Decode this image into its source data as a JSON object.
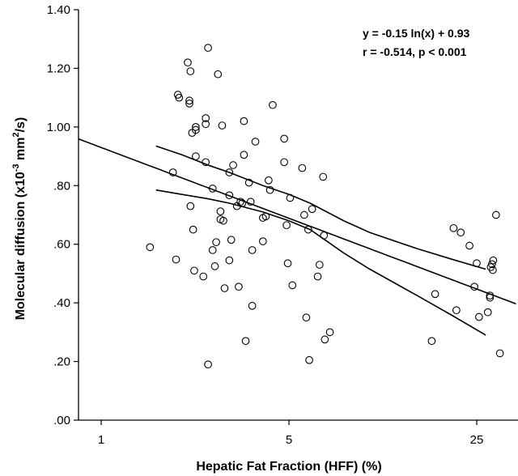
{
  "chart_data": {
    "type": "scatter",
    "xlabel": "Hepatic Fat Fraction (HFF) (%)",
    "ylabel_main": "Molecular diffusion (x10",
    "ylabel_exp": "-3",
    "ylabel_mid": " mm",
    "ylabel_sup2": "2",
    "ylabel_end": "/s)",
    "x_scale": "log",
    "x_ticks": [
      1,
      5,
      25
    ],
    "x_tick_labels": [
      "1",
      "5",
      "25"
    ],
    "y_ticks": [
      0,
      0.2,
      0.4,
      0.6,
      0.8,
      1.0,
      1.2,
      1.4
    ],
    "y_tick_labels": [
      ".00",
      ".20",
      ".40",
      ".60",
      ".80",
      "1.00",
      "1.20",
      "1.40"
    ],
    "ylim": [
      0,
      1.4
    ],
    "xlim": [
      0.6,
      35
    ],
    "grid": false,
    "annotations": [
      "y = -0.15 ln(x) + 0.93",
      "r = -0.514, p < 0.001"
    ],
    "fit": {
      "slope": -0.15,
      "intercept": 0.93,
      "x_range": [
        0.6,
        35
      ]
    },
    "confidence_band": {
      "x_range": [
        1.6,
        27
      ],
      "upper": [
        [
          1.6,
          0.935
        ],
        [
          2.0,
          0.905
        ],
        [
          2.5,
          0.87
        ],
        [
          3.0,
          0.845
        ],
        [
          4.0,
          0.8
        ],
        [
          5.0,
          0.77
        ],
        [
          6.0,
          0.74
        ],
        [
          8.0,
          0.68
        ],
        [
          10.0,
          0.64
        ],
        [
          15.0,
          0.585
        ],
        [
          20.0,
          0.55
        ],
        [
          27.0,
          0.515
        ]
      ],
      "lower": [
        [
          1.6,
          0.785
        ],
        [
          2.0,
          0.77
        ],
        [
          2.5,
          0.755
        ],
        [
          3.0,
          0.74
        ],
        [
          4.0,
          0.71
        ],
        [
          5.0,
          0.68
        ],
        [
          6.0,
          0.65
        ],
        [
          8.0,
          0.57
        ],
        [
          10.0,
          0.515
        ],
        [
          15.0,
          0.425
        ],
        [
          20.0,
          0.36
        ],
        [
          27.0,
          0.29
        ]
      ]
    },
    "points": [
      [
        1.52,
        0.59
      ],
      [
        1.85,
        0.845
      ],
      [
        1.9,
        0.548
      ],
      [
        1.93,
        1.11
      ],
      [
        1.95,
        1.1
      ],
      [
        2.1,
        1.22
      ],
      [
        2.13,
        1.09
      ],
      [
        2.13,
        1.08
      ],
      [
        2.15,
        1.19
      ],
      [
        2.15,
        0.73
      ],
      [
        2.18,
        0.98
      ],
      [
        2.2,
        0.65
      ],
      [
        2.22,
        0.51
      ],
      [
        2.25,
        1.0
      ],
      [
        2.25,
        0.99
      ],
      [
        2.25,
        0.9
      ],
      [
        2.4,
        0.49
      ],
      [
        2.45,
        1.03
      ],
      [
        2.45,
        1.01
      ],
      [
        2.45,
        0.88
      ],
      [
        2.5,
        1.27
      ],
      [
        2.5,
        0.19
      ],
      [
        2.6,
        0.79
      ],
      [
        2.6,
        0.58
      ],
      [
        2.65,
        0.525
      ],
      [
        2.68,
        0.607
      ],
      [
        2.72,
        1.18
      ],
      [
        2.78,
        0.712
      ],
      [
        2.78,
        0.685
      ],
      [
        2.82,
        1.005
      ],
      [
        2.85,
        0.68
      ],
      [
        2.88,
        0.45
      ],
      [
        3.0,
        0.845
      ],
      [
        3.0,
        0.767
      ],
      [
        3.0,
        0.545
      ],
      [
        3.05,
        0.615
      ],
      [
        3.1,
        0.87
      ],
      [
        3.2,
        0.73
      ],
      [
        3.25,
        0.455
      ],
      [
        3.3,
        0.745
      ],
      [
        3.35,
        0.74
      ],
      [
        3.4,
        1.02
      ],
      [
        3.4,
        0.905
      ],
      [
        3.45,
        0.27
      ],
      [
        3.55,
        0.81
      ],
      [
        3.6,
        0.745
      ],
      [
        3.65,
        0.58
      ],
      [
        3.65,
        0.39
      ],
      [
        3.75,
        0.95
      ],
      [
        4.0,
        0.61
      ],
      [
        4.0,
        0.69
      ],
      [
        4.1,
        0.695
      ],
      [
        4.2,
        0.818
      ],
      [
        4.25,
        0.785
      ],
      [
        4.35,
        1.075
      ],
      [
        4.8,
        0.96
      ],
      [
        4.8,
        0.88
      ],
      [
        4.9,
        0.665
      ],
      [
        4.95,
        0.535
      ],
      [
        5.05,
        0.758
      ],
      [
        5.15,
        0.46
      ],
      [
        5.6,
        0.86
      ],
      [
        5.7,
        0.7
      ],
      [
        5.8,
        0.35
      ],
      [
        5.9,
        0.65
      ],
      [
        5.95,
        0.205
      ],
      [
        6.1,
        0.72
      ],
      [
        6.4,
        0.49
      ],
      [
        6.5,
        0.53
      ],
      [
        6.7,
        0.83
      ],
      [
        6.75,
        0.63
      ],
      [
        6.8,
        0.275
      ],
      [
        7.1,
        0.3
      ],
      [
        17.0,
        0.27
      ],
      [
        17.5,
        0.43
      ],
      [
        20.5,
        0.655
      ],
      [
        21.0,
        0.375
      ],
      [
        21.8,
        0.64
      ],
      [
        23.5,
        0.595
      ],
      [
        24.5,
        0.455
      ],
      [
        25.0,
        0.535
      ],
      [
        25.5,
        0.352
      ],
      [
        27.5,
        0.368
      ],
      [
        28.0,
        0.425
      ],
      [
        28.0,
        0.418
      ],
      [
        28.2,
        0.522
      ],
      [
        28.5,
        0.532
      ],
      [
        28.7,
        0.512
      ],
      [
        28.8,
        0.545
      ],
      [
        29.5,
        0.7
      ],
      [
        30.5,
        0.228
      ]
    ]
  }
}
